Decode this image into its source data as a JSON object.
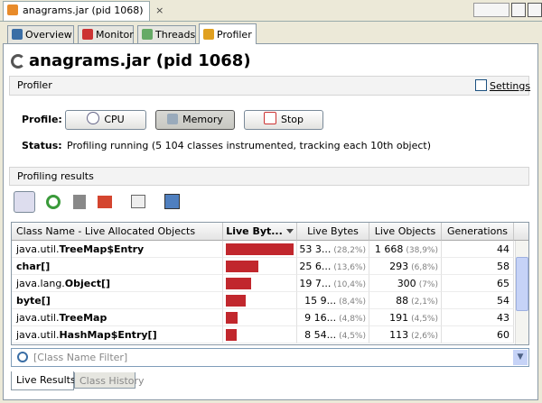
{
  "window_tab": "anagrams.jar (pid 1068)",
  "tabs": [
    "Overview",
    "Monitor",
    "Threads",
    "Profiler"
  ],
  "heading": "anagrams.jar (pid 1068)",
  "profiler_section": {
    "title": "Profiler",
    "settings": "Settings",
    "profile_label": "Profile:",
    "buttons": [
      "CPU",
      "Memory",
      "Stop"
    ],
    "status_label": "Status:",
    "status": "Profiling running (5 104 classes instrumented, tracking each 10th object)"
  },
  "results": {
    "title": "Profiling results",
    "columns": [
      "Class Name - Live Allocated Objects",
      "Live Byt...",
      "Live Bytes",
      "Live Objects",
      "Generations"
    ],
    "bar_color": "#c1272d",
    "rows": [
      {
        "package": "java.util.",
        "class": "TreeMap$Entry",
        "live_bytes": "53 3...",
        "live_bytes_pct": "(28,2%)",
        "live_objects": "1 668",
        "live_objects_pct": "(38,9%)",
        "generations": 44
      },
      {
        "class": "char[]",
        "live_bytes": "25 6...",
        "live_bytes_pct": "(13,6%)",
        "live_objects": "293",
        "live_objects_pct": "(6,8%)",
        "generations": 58
      },
      {
        "package": "java.lang.",
        "class": "Object[]",
        "live_bytes": "19 7...",
        "live_bytes_pct": "(10,4%)",
        "live_objects": "300",
        "live_objects_pct": "(7%)",
        "generations": 65
      },
      {
        "class": "byte[]",
        "live_bytes": "15 9...",
        "live_bytes_pct": "(8,4%)",
        "live_objects": "88",
        "live_objects_pct": "(2,1%)",
        "generations": 54
      },
      {
        "package": "java.util.",
        "class": "TreeMap",
        "live_bytes": "9 16...",
        "live_bytes_pct": "(4,8%)",
        "live_objects": "191",
        "live_objects_pct": "(4,5%)",
        "generations": 43
      },
      {
        "package": "java.util.",
        "class": "HashMap$Entry[]",
        "live_bytes": "8 54...",
        "live_bytes_pct": "(4,5%)",
        "live_objects": "113",
        "live_objects_pct": "(2,6%)",
        "generations": 60
      }
    ],
    "filter_placeholder": "[Class Name Filter]",
    "tabs": [
      "Live Results",
      "Class History"
    ]
  }
}
